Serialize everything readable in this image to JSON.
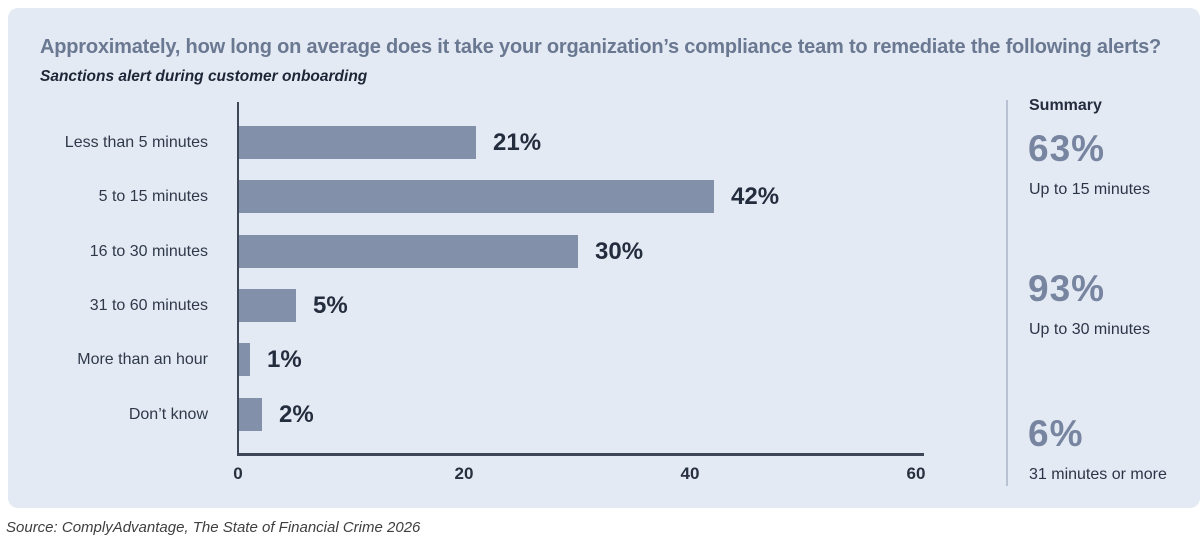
{
  "title": "Approximately, how long on average does it take your organization’s compliance team to remediate the following alerts?",
  "subtitle": "Sanctions alert during customer onboarding",
  "source": "Source: ComplyAdvantage, The State of Financial Crime 2026",
  "chart_data": {
    "type": "bar",
    "orientation": "horizontal",
    "title": "Approximately, how long on average does it take your organization’s compliance team to remediate the following alerts?",
    "subtitle": "Sanctions alert during customer onboarding",
    "categories": [
      "Less than 5 minutes",
      "5 to 15 minutes",
      "16 to 30 minutes",
      "31 to 60 minutes",
      "More than an hour",
      "Don’t know"
    ],
    "values": [
      21,
      42,
      30,
      5,
      1,
      2
    ],
    "value_labels": [
      "21%",
      "42%",
      "30%",
      "5%",
      "1%",
      "2%"
    ],
    "x_ticks": [
      0,
      20,
      40,
      60
    ],
    "xlim": [
      0,
      61.5
    ],
    "xlabel": "",
    "ylabel": "",
    "grid": false,
    "legend": "none",
    "bar_color": "#8290aa"
  },
  "summary": {
    "heading": "Summary",
    "items": [
      {
        "value": "63%",
        "label": "Up to 15 minutes"
      },
      {
        "value": "93%",
        "label": "Up to 30 minutes"
      },
      {
        "value": "6%",
        "label": "31 minutes or more"
      }
    ]
  },
  "colors": {
    "card_background": "#e3eaf4",
    "bar": "#8290aa",
    "title_text": "#6a7891",
    "dark_text": "#232d3d",
    "summary_value": "#7885a0",
    "axis": "#3e4757"
  }
}
